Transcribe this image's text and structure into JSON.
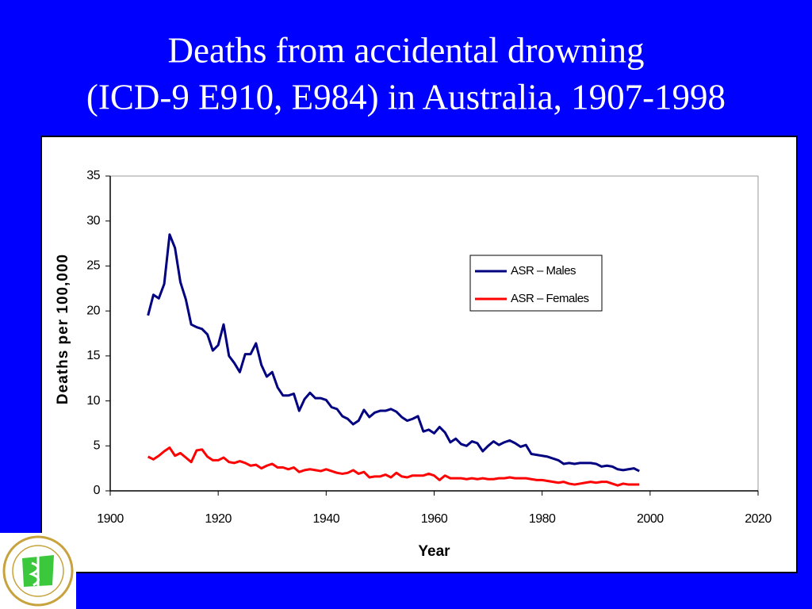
{
  "chart_data": {
    "type": "line",
    "title": [
      "Deaths from accidental drowning",
      "(ICD-9 E910, E984) in Australia, 1907-1998"
    ],
    "x_label": "Year",
    "y_label": "Deaths per 100,000",
    "x": [
      1907,
      1908,
      1909,
      1910,
      1911,
      1912,
      1913,
      1914,
      1915,
      1916,
      1917,
      1918,
      1919,
      1920,
      1921,
      1922,
      1923,
      1924,
      1925,
      1926,
      1927,
      1928,
      1929,
      1930,
      1931,
      1932,
      1933,
      1934,
      1935,
      1936,
      1937,
      1938,
      1939,
      1940,
      1941,
      1942,
      1943,
      1944,
      1945,
      1946,
      1947,
      1948,
      1949,
      1950,
      1951,
      1952,
      1953,
      1954,
      1955,
      1956,
      1957,
      1958,
      1959,
      1960,
      1961,
      1962,
      1963,
      1964,
      1965,
      1966,
      1967,
      1968,
      1969,
      1970,
      1971,
      1972,
      1973,
      1974,
      1975,
      1976,
      1977,
      1978,
      1979,
      1980,
      1981,
      1982,
      1983,
      1984,
      1985,
      1986,
      1987,
      1988,
      1989,
      1990,
      1991,
      1992,
      1993,
      1994,
      1995,
      1996,
      1997,
      1998
    ],
    "series": [
      {
        "name": "ASR – Males",
        "color": "#000080",
        "values": [
          19.5,
          21.8,
          21.4,
          23,
          28.5,
          27,
          23.2,
          21.3,
          18.5,
          18.2,
          18,
          17.4,
          15.6,
          16.2,
          18.5,
          15,
          14.2,
          13.2,
          15.2,
          15.2,
          16.4,
          14,
          12.7,
          13.2,
          11.5,
          10.6,
          10.6,
          10.8,
          8.9,
          10.2,
          10.9,
          10.3,
          10.3,
          10.1,
          9.3,
          9.1,
          8.3,
          8,
          7.4,
          7.8,
          9,
          8.2,
          8.7,
          8.9,
          8.9,
          9.1,
          8.8,
          8.2,
          7.8,
          8,
          8.3,
          6.6,
          6.8,
          6.4,
          7.1,
          6.5,
          5.4,
          5.8,
          5.2,
          5,
          5.5,
          5.3,
          4.4,
          5,
          5.5,
          5.1,
          5.4,
          5.6,
          5.3,
          4.9,
          5.1,
          4.1,
          4,
          3.9,
          3.8,
          3.6,
          3.4,
          3,
          3.1,
          3,
          3.1,
          3.1,
          3.1,
          3,
          2.7,
          2.8,
          2.7,
          2.4,
          2.3,
          2.4,
          2.5,
          2.2
        ]
      },
      {
        "name": "ASR – Females",
        "color": "#ff0000",
        "values": [
          3.8,
          3.5,
          3.9,
          4.4,
          4.8,
          3.9,
          4.2,
          3.7,
          3.2,
          4.5,
          4.6,
          3.8,
          3.4,
          3.4,
          3.7,
          3.2,
          3.1,
          3.3,
          3.1,
          2.8,
          2.9,
          2.5,
          2.8,
          3,
          2.6,
          2.6,
          2.4,
          2.6,
          2.1,
          2.3,
          2.4,
          2.3,
          2.2,
          2.4,
          2.2,
          2,
          1.9,
          2,
          2.3,
          1.9,
          2.1,
          1.5,
          1.6,
          1.6,
          1.8,
          1.5,
          2,
          1.6,
          1.5,
          1.7,
          1.7,
          1.7,
          1.9,
          1.7,
          1.2,
          1.7,
          1.4,
          1.4,
          1.4,
          1.3,
          1.4,
          1.3,
          1.4,
          1.3,
          1.3,
          1.4,
          1.4,
          1.5,
          1.4,
          1.4,
          1.4,
          1.3,
          1.2,
          1.2,
          1.1,
          1,
          0.9,
          1,
          0.8,
          0.7,
          0.8,
          0.9,
          1,
          0.9,
          1,
          1,
          0.8,
          0.6,
          0.8,
          0.7,
          0.7,
          0.7
        ]
      }
    ],
    "xlim": [
      1900,
      2020
    ],
    "xticks": [
      1900,
      1920,
      1940,
      1960,
      1980,
      2000,
      2020
    ],
    "ylim": [
      0,
      35
    ],
    "yticks": [
      0,
      5,
      10,
      15,
      20,
      25,
      30,
      35
    ],
    "grid": false,
    "legend": "center right"
  }
}
